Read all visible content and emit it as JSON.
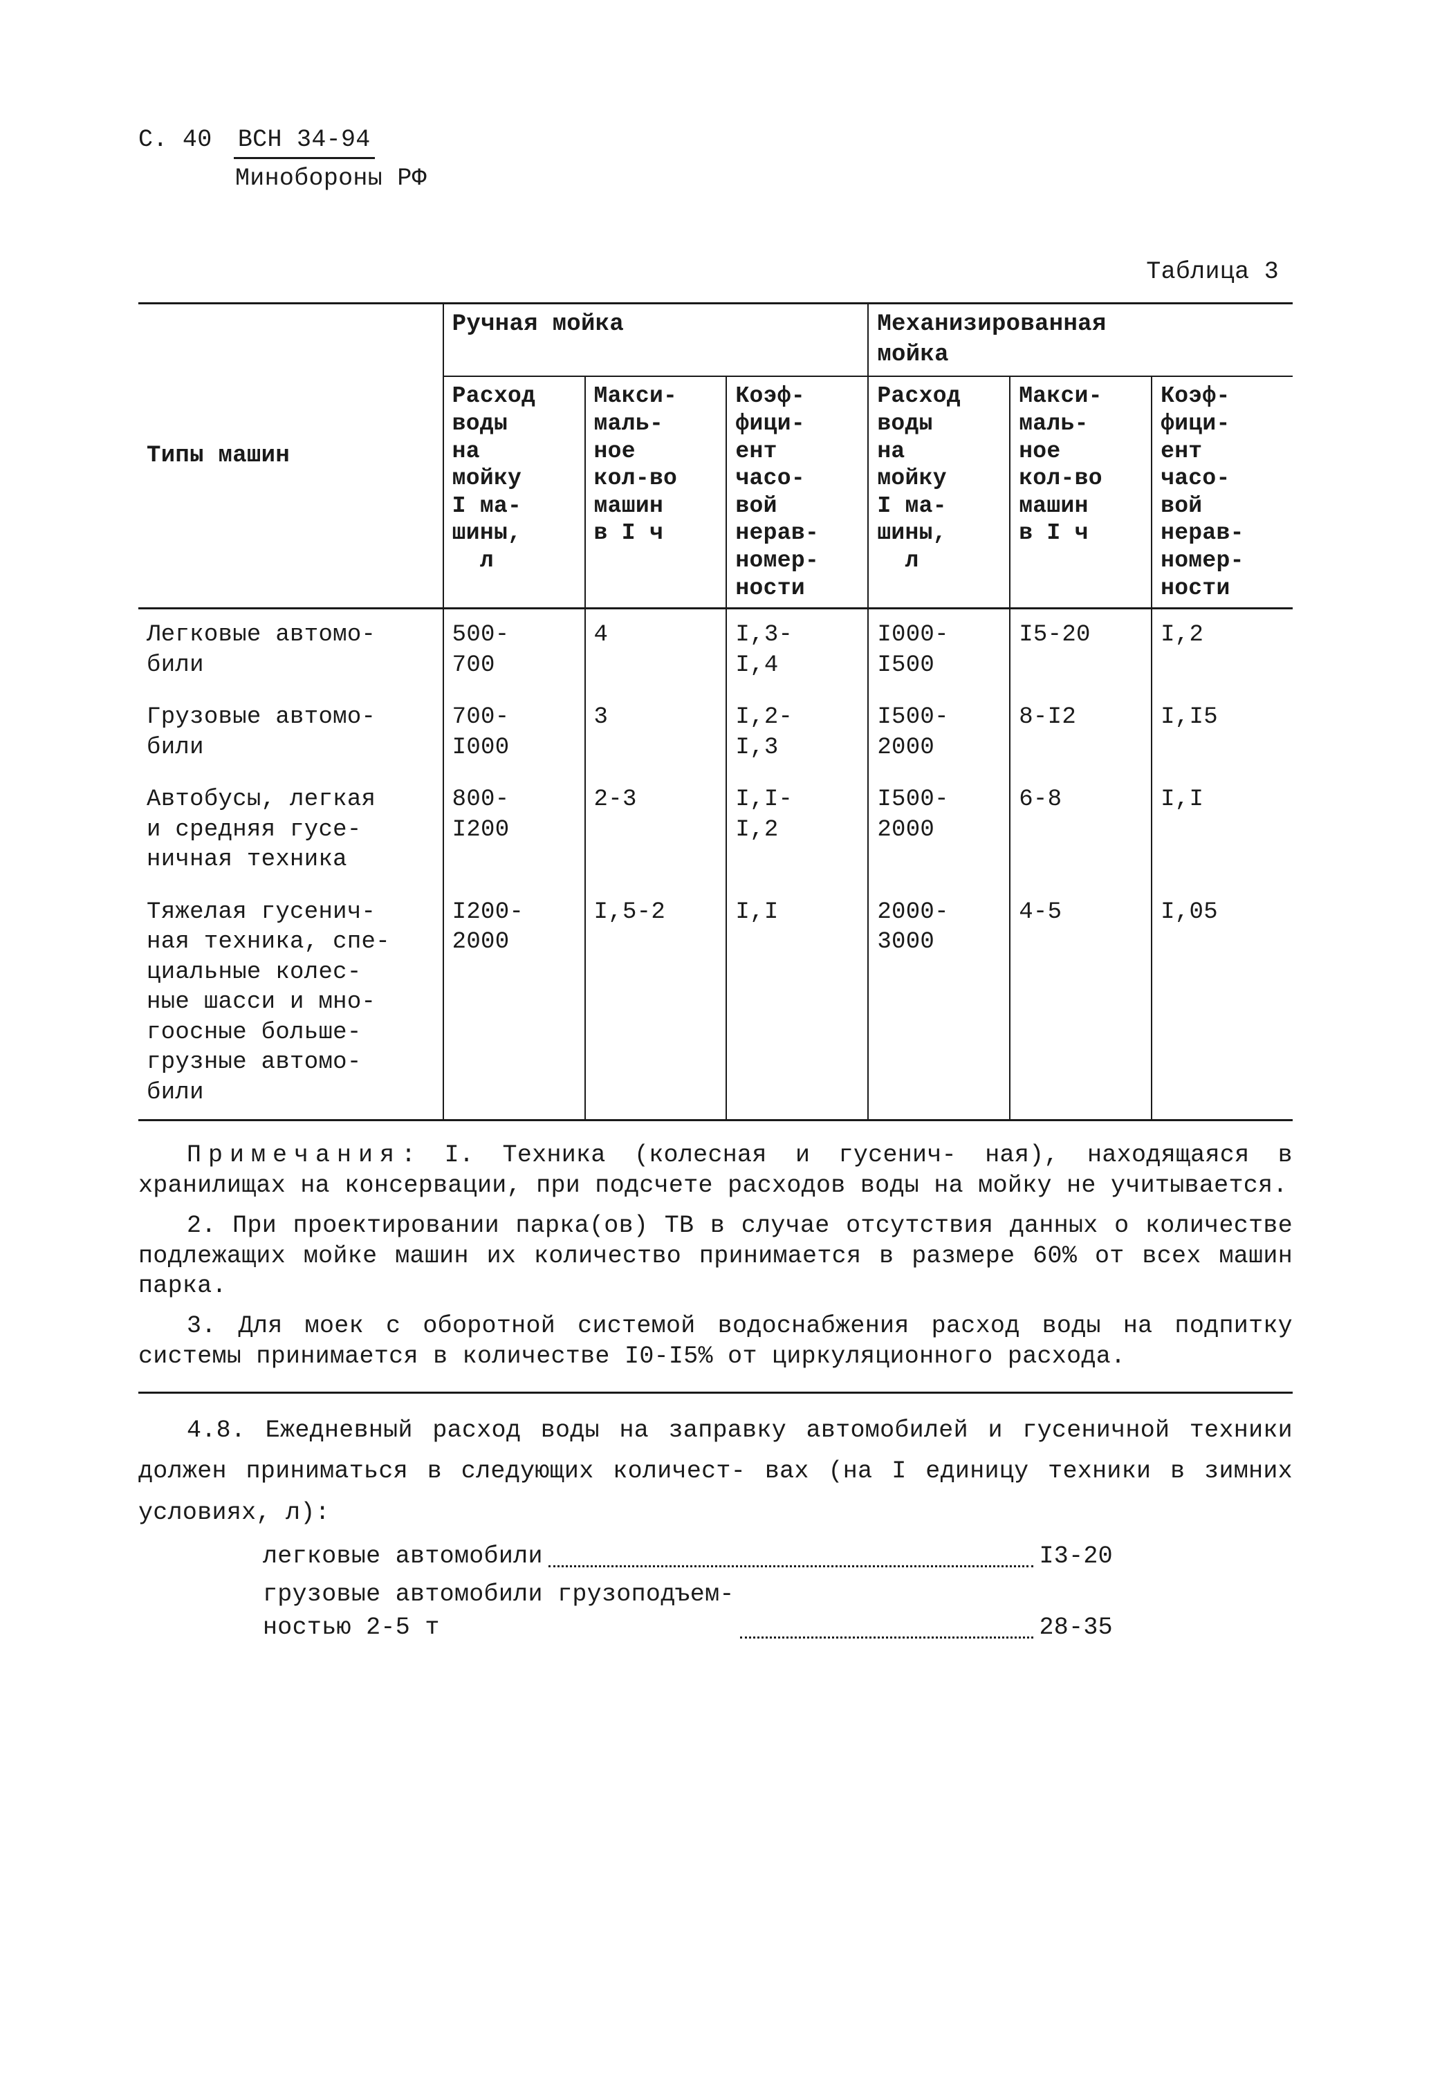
{
  "page": {
    "page_label_prefix": "С. 40",
    "doc_number": "ВСН 34-94",
    "ministry": "Минобороны РФ"
  },
  "table": {
    "caption": "Таблица 3",
    "col_types_header": "Типы машин",
    "group_manual": "Ручная мойка",
    "group_mech": "Механизированная\nмойка",
    "sub_water": "Расход\nводы\nна\nмойку\nI ма-\nшины,\n  л",
    "sub_max": "Макси-\nмаль-\nное\nкол-во\nмашин\nв I ч",
    "sub_coef": "Коэф-\nфици-\nент\nчасо-\nвой\nнерав-\nномер-\nности",
    "rows": [
      {
        "type": "Легковые автомо-\nбили",
        "m_water": "500-\n700",
        "m_max": "4",
        "m_coef": "I,3-\nI,4",
        "a_water": "I000-\nI500",
        "a_max": "I5-20",
        "a_coef": "I,2"
      },
      {
        "type": "Грузовые автомо-\nбили",
        "m_water": "700-\nI000",
        "m_max": "3",
        "m_coef": "I,2-\nI,3",
        "a_water": "I500-\n2000",
        "a_max": "8-I2",
        "a_coef": "I,I5"
      },
      {
        "type": "Автобусы, легкая\nи средняя гусе-\nничная техника",
        "m_water": "800-\nI200",
        "m_max": "2-3",
        "m_coef": "I,I-\nI,2",
        "a_water": "I500-\n2000",
        "a_max": "6-8",
        "a_coef": "I,I"
      },
      {
        "type": "Тяжелая гусенич-\nная техника, спе-\nциальные колес-\nные шасси и мно-\nгоосные больше-\nгрузные автомо-\nбили",
        "m_water": "I200-\n2000",
        "m_max": "I,5-2",
        "m_coef": "I,I",
        "a_water": "2000-\n3000",
        "a_max": "4-5",
        "a_coef": "I,05"
      }
    ]
  },
  "notes": {
    "lead": "Примечания",
    "n1": ": I. Техника (колесная и гусенич-\nная), находящаяся в хранилищах на консервации, при подсчете расходов воды на мойку не учитывается.",
    "n2": "2. При проектировании парка(ов) ТВ в случае отсутствия данных о количестве подлежащих мойке машин их количество принимается в размере 60% от всех машин парка.",
    "n3": "3. Для моек с оборотной системой водоснабжения расход воды на подпитку системы принимается в количестве I0-I5% от циркуляционного расхода."
  },
  "section48": {
    "para": "4.8. Ежедневный расход воды на заправку автомобилей и гусеничной техники должен приниматься в следующих количест-\nвах (на I единицу техники в зимних условиях, л):",
    "items": [
      {
        "label": "легковые автомобили",
        "value": "I3-20"
      },
      {
        "label": "грузовые автомобили грузоподъем-\nностью 2-5 т",
        "value": "28-35"
      }
    ]
  }
}
